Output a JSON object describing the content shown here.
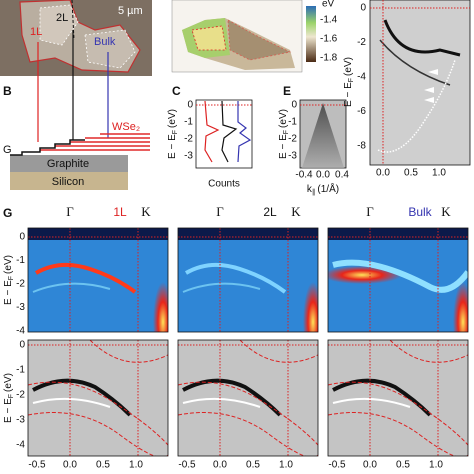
{
  "panel_a": {
    "scale": "5 µm",
    "labels": [
      "1L",
      "2L",
      "Bulk"
    ]
  },
  "panel_map": {
    "colorbar_unit": "eV",
    "colorbar_ticks": [
      "-1.4",
      "-1.6",
      "-1.8"
    ]
  },
  "energy_label": {
    "main": "E − E",
    "sub": "F",
    "unit": "(eV)"
  },
  "momentum_label": {
    "main": "k",
    "sub": "∥",
    "unit": "(1/Å)"
  },
  "panel_d": {
    "yticks": [
      "0",
      "-2",
      "-4",
      "-6",
      "-8"
    ],
    "xticks": [
      "0.0",
      "0.5",
      "1.0"
    ]
  },
  "panel_b": {
    "letter": "B",
    "layer": "WSe₂",
    "contact": "G",
    "graphite": "Graphite",
    "silicon": "Silicon"
  },
  "panel_c": {
    "letter": "C",
    "yticks": [
      "0",
      "-1",
      "-2",
      "-3"
    ],
    "xlabel": "Counts"
  },
  "panel_e": {
    "letter": "E",
    "yticks": [
      "0",
      "-1",
      "-2",
      "-3"
    ],
    "xticks": [
      "-0.4",
      "0.0",
      "0.4"
    ]
  },
  "panel_g": {
    "letter": "G",
    "columns": [
      {
        "label": "1L",
        "gamma": "Γ",
        "k": "K"
      },
      {
        "label": "2L",
        "gamma": "Γ",
        "k": "K"
      },
      {
        "label": "Bulk",
        "gamma": "Γ",
        "k": "K"
      }
    ],
    "yticks": [
      "0",
      "-1",
      "-2",
      "-3",
      "-4"
    ],
    "xticks": [
      "-0.5",
      "0.0",
      "0.5",
      "1.0"
    ]
  }
}
